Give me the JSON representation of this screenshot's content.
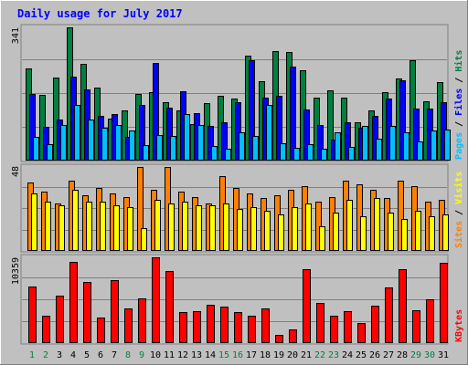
{
  "chart_data": [
    {
      "type": "bar",
      "title": "Daily usage for July 2017",
      "categories": [
        "1",
        "2",
        "3",
        "4",
        "5",
        "6",
        "7",
        "8",
        "9",
        "10",
        "11",
        "12",
        "13",
        "14",
        "15",
        "16",
        "17",
        "18",
        "19",
        "20",
        "21",
        "22",
        "23",
        "24",
        "25",
        "26",
        "27",
        "28",
        "29",
        "30",
        "31"
      ],
      "weekend_days": [
        "1",
        "2",
        "8",
        "9",
        "15",
        "16",
        "22",
        "23",
        "29",
        "30"
      ],
      "ylim": [
        0,
        341
      ],
      "ymax_label": "341",
      "legend": {
        "pages": "Pages",
        "files": "Files",
        "hits": "Hits",
        "sep": " / "
      },
      "series": [
        {
          "name": "Hits",
          "color": "#008040",
          "values": [
            235,
            168,
            212,
            341,
            248,
            188,
            107,
            129,
            171,
            175,
            150,
            129,
            93,
            147,
            165,
            158,
            268,
            204,
            280,
            278,
            232,
            161,
            180,
            160,
            97,
            128,
            175,
            211,
            258,
            151,
            202
          ]
        },
        {
          "name": "Files",
          "color": "#0000ff",
          "values": [
            170,
            86,
            104,
            216,
            182,
            115,
            119,
            61,
            143,
            250,
            136,
            178,
            122,
            88,
            99,
            149,
            256,
            162,
            165,
            241,
            130,
            92,
            54,
            98,
            85,
            115,
            158,
            205,
            134,
            134,
            150
          ]
        },
        {
          "name": "Pages",
          "color": "#00c0ff",
          "values": [
            60,
            43,
            90,
            143,
            104,
            83,
            91,
            77,
            39,
            65,
            63,
            118,
            91,
            37,
            31,
            73,
            62,
            143,
            45,
            33,
            41,
            31,
            73,
            35,
            88,
            56,
            89,
            72,
            50,
            76,
            79
          ]
        }
      ]
    },
    {
      "type": "bar",
      "categories": [
        "1",
        "2",
        "3",
        "4",
        "5",
        "6",
        "7",
        "8",
        "9",
        "10",
        "11",
        "12",
        "13",
        "14",
        "15",
        "16",
        "17",
        "18",
        "19",
        "20",
        "21",
        "22",
        "23",
        "24",
        "25",
        "26",
        "27",
        "28",
        "29",
        "30",
        "31"
      ],
      "ylim": [
        0,
        48
      ],
      "ymax_label": "48",
      "legend": {
        "sites": "Sites",
        "visits": "Visits",
        "sep": " / "
      },
      "series": [
        {
          "name": "Visits",
          "color": "#ff8000",
          "values": [
            39,
            34,
            27,
            40,
            32,
            36,
            33,
            31,
            48,
            35,
            48,
            34,
            31,
            27,
            43,
            36,
            33,
            30,
            32,
            35,
            37,
            28,
            31,
            40,
            38,
            35,
            30,
            40,
            37,
            28,
            29
          ]
        },
        {
          "name": "Sites",
          "color": "#ffff00",
          "values": [
            33,
            28,
            26,
            35,
            28,
            28,
            26,
            25,
            13,
            29,
            27,
            28,
            26,
            26,
            27,
            24,
            25,
            23,
            21,
            25,
            27,
            14,
            22,
            29,
            20,
            30,
            22,
            18,
            23,
            20,
            21
          ]
        }
      ]
    },
    {
      "type": "bar",
      "categories": [
        "1",
        "2",
        "3",
        "4",
        "5",
        "6",
        "7",
        "8",
        "9",
        "10",
        "11",
        "12",
        "13",
        "14",
        "15",
        "16",
        "17",
        "18",
        "19",
        "20",
        "21",
        "22",
        "23",
        "24",
        "25",
        "26",
        "27",
        "28",
        "29",
        "30",
        "31"
      ],
      "ylim": [
        0,
        10359
      ],
      "ymax_label": "10359",
      "legend": {
        "kbytes": "KBytes"
      },
      "series": [
        {
          "name": "KBytes",
          "color": "#ff0000",
          "values": [
            6834,
            3315,
            5696,
            9759,
            7415,
            3096,
            7581,
            4158,
            5403,
            10359,
            8710,
            3796,
            3858,
            4604,
            4443,
            3758,
            3257,
            4236,
            1011,
            1645,
            8902,
            4828,
            3272,
            3819,
            2476,
            4573,
            6738,
            8910,
            3967,
            5278,
            9679
          ]
        }
      ]
    }
  ]
}
